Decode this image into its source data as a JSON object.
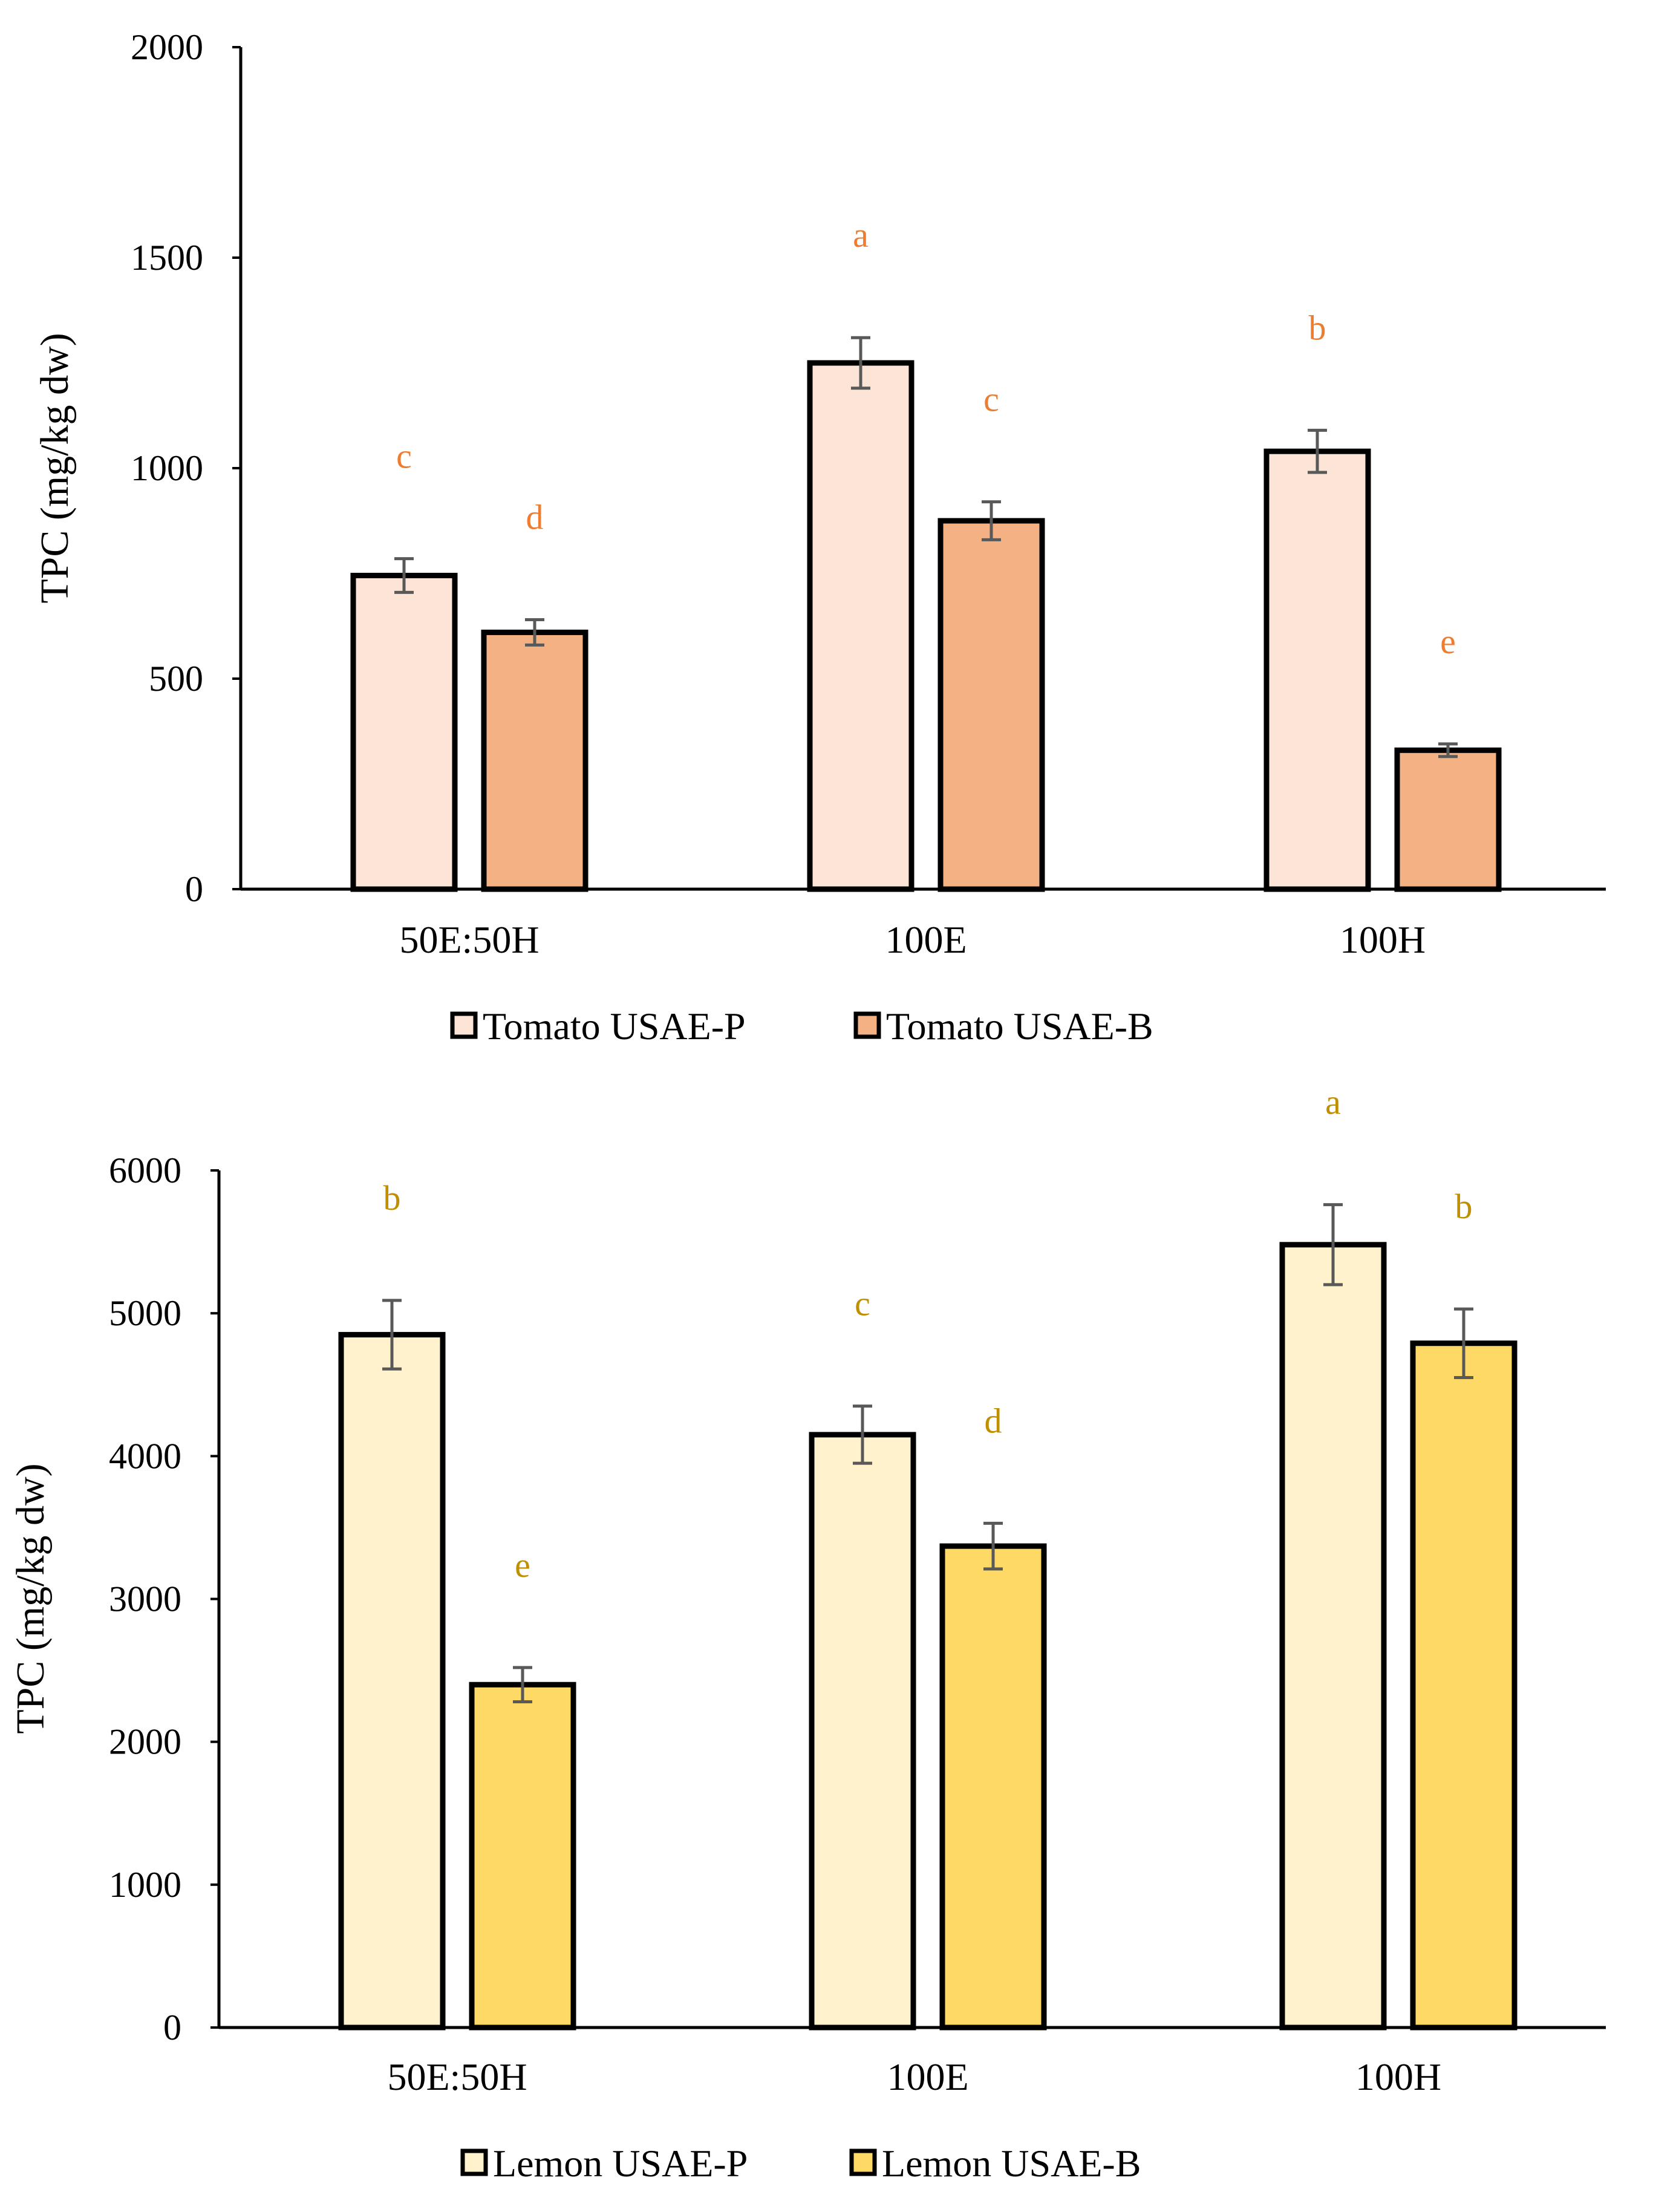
{
  "chart_data": [
    {
      "type": "bar",
      "categories": [
        "50E:50H",
        "100E",
        "100H"
      ],
      "ylabel": "TPC (mg/kg dw)",
      "xlabel": "",
      "ylim": [
        0,
        2000
      ],
      "yticks": [
        0,
        500,
        1000,
        1500,
        2000
      ],
      "grid": false,
      "legend_position": "bottom",
      "letter_color": "#ED7D31",
      "series": [
        {
          "name": "Tomato USAE-P",
          "color": "#FCE4D6",
          "values": [
            745,
            1250,
            1040
          ],
          "errors": [
            40,
            60,
            50
          ],
          "letters": [
            "c",
            "a",
            "b"
          ]
        },
        {
          "name": "Tomato USAE-B",
          "color": "#F4B183",
          "values": [
            610,
            875,
            330
          ],
          "errors": [
            30,
            45,
            15
          ],
          "letters": [
            "d",
            "c",
            "e"
          ]
        }
      ]
    },
    {
      "type": "bar",
      "categories": [
        "50E:50H",
        "100E",
        "100H"
      ],
      "ylabel": "TPC (mg/kg dw)",
      "xlabel": "",
      "ylim": [
        0,
        6000
      ],
      "yticks": [
        0,
        1000,
        2000,
        3000,
        4000,
        5000,
        6000
      ],
      "grid": false,
      "legend_position": "bottom",
      "letter_color": "#BF8F00",
      "series": [
        {
          "name": "Lemon USAE-P",
          "color": "#FFF2CC",
          "values": [
            4850,
            4150,
            5480
          ],
          "errors": [
            240,
            200,
            280
          ],
          "letters": [
            "b",
            "c",
            "a"
          ]
        },
        {
          "name": "Lemon USAE-B",
          "color": "#FFD966",
          "values": [
            2400,
            3370,
            4790
          ],
          "errors": [
            120,
            160,
            240
          ],
          "letters": [
            "e",
            "d",
            "b"
          ]
        }
      ]
    }
  ]
}
